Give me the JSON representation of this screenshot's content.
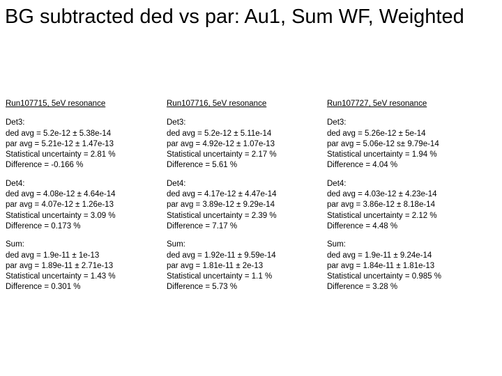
{
  "title": "BG subtracted ded vs par: Au1, Sum WF, Weighted",
  "columns": [
    {
      "header": "Run107715, 5eV resonance",
      "blocks": [
        {
          "label": "Det3:",
          "lines": [
            "ded avg = 5.2e-12 ± 5.38e-14",
            "par avg = 5.21e-12 ± 1.47e-13",
            "Statistical uncertainty = 2.81 %",
            "Difference = -0.166 %"
          ]
        },
        {
          "label": "Det4:",
          "lines": [
            "ded avg = 4.08e-12 ± 4.64e-14",
            "par avg = 4.07e-12 ± 1.26e-13",
            "Statistical uncertainty = 3.09 %",
            "Difference = 0.173 %"
          ]
        },
        {
          "label": "Sum:",
          "lines": [
            "ded avg = 1.9e-11 ± 1e-13",
            "par avg = 1.89e-11 ± 2.71e-13",
            "Statistical uncertainty = 1.43 %",
            "Difference = 0.301 %"
          ]
        }
      ]
    },
    {
      "header": "Run107716, 5eV resonance",
      "blocks": [
        {
          "label": "Det3:",
          "lines": [
            "ded avg = 5.2e-12 ± 5.11e-14",
            "par avg = 4.92e-12 ± 1.07e-13",
            "Statistical uncertainty = 2.17 %",
            "Difference = 5.61 %"
          ]
        },
        {
          "label": "Det4:",
          "lines": [
            "ded avg = 4.17e-12 ± 4.47e-14",
            "par avg = 3.89e-12 ± 9.29e-14",
            "Statistical uncertainty = 2.39 %",
            "Difference = 7.17 %"
          ]
        },
        {
          "label": "Sum:",
          "lines": [
            "ded avg = 1.92e-11 ± 9.59e-14",
            "par avg = 1.81e-11 ± 2e-13",
            "Statistical uncertainty = 1.1 %",
            "Difference = 5.73 %"
          ]
        }
      ]
    },
    {
      "header": "Run107727, 5eV resonance",
      "blocks": [
        {
          "label": "Det3:",
          "lines": [
            "ded avg = 5.26e-12 ± 5e-14",
            "par avg = 5.06e-12 s± 9.79e-14",
            "Statistical uncertainty = 1.94 %",
            "Difference = 4.04 %"
          ]
        },
        {
          "label": "Det4:",
          "lines": [
            "ded avg = 4.03e-12 ± 4.23e-14",
            "par avg = 3.86e-12 ± 8.18e-14",
            "Statistical uncertainty = 2.12 %",
            "Difference = 4.48 %"
          ]
        },
        {
          "label": "Sum:",
          "lines": [
            "ded avg = 1.9e-11 ± 9.24e-14",
            "par avg = 1.84e-11 ± 1.81e-13",
            "Statistical uncertainty = 0.985 %",
            "Difference = 3.28 %"
          ]
        }
      ]
    }
  ]
}
